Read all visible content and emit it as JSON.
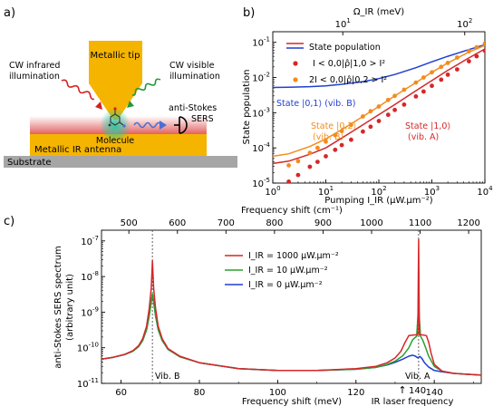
{
  "panel_labels": {
    "a": "a)",
    "b": "b)",
    "c": "c)"
  },
  "schematic": {
    "tip_label": "Metallic tip",
    "ir_label_1": "CW infrared",
    "ir_label_2": "illumination",
    "vis_label_1": "CW visible",
    "vis_label_2": "illumination",
    "sers_label_1": "anti-Stokes",
    "sers_label_2": "SERS",
    "molecule_label": "Molecule",
    "antenna_label": "Metallic IR antenna",
    "substrate_label": "Substrate",
    "colors": {
      "gold": "#f5b400",
      "substrate": "#a6a6a6",
      "ir": "#d42020",
      "visible": "#1f9a3a",
      "sers": "#4a6fd4",
      "glow": "#2cc6a0"
    }
  },
  "chart_data": [
    {
      "id": "b",
      "type": "line",
      "xlabel": "Pumping I_IR (μW.μm⁻²)",
      "top_xlabel": "Ω_IR (meV)",
      "ylabel": "State population",
      "xscale": "log",
      "yscale": "log",
      "xlim": [
        1,
        10000
      ],
      "ylim": [
        1e-05,
        0.2
      ],
      "x_ticks": [
        "10^0",
        "10^1",
        "10^2",
        "10^3",
        "10^4"
      ],
      "y_ticks": [
        "10^-5",
        "10^-4",
        "10^-3",
        "10^-2",
        "10^-1"
      ],
      "top_ticks": [
        "10^1",
        "10^2"
      ],
      "legend": [
        {
          "label": "State population",
          "style": "double-line",
          "colors": [
            "#d62728",
            "#1f3fd1"
          ]
        },
        {
          "label": "I < 0,0|ρ̂|1,0 > I²",
          "style": "dot",
          "color": "#d62728"
        },
        {
          "label": "2I < 0,0|ρ̂|0,2 > I²",
          "style": "dot",
          "color": "#f28c1c"
        }
      ],
      "annotations": [
        {
          "text": "State |0,1⟩ (vib. B)",
          "color": "#1f3fd1"
        },
        {
          "text": "State |0,2⟩",
          "color": "#f28c1c"
        },
        {
          "text": "(vib. B)",
          "color": "#f28c1c"
        },
        {
          "text": "State |1,0⟩",
          "color": "#d62728"
        },
        {
          "text": "(vib. A)",
          "color": "#d62728"
        }
      ],
      "series": [
        {
          "name": "State |0,1⟩ (vib. B)",
          "color": "#1f3fd1",
          "style": "line",
          "x": [
            1,
            2,
            5,
            10,
            20,
            50,
            100,
            200,
            500,
            1000,
            2000,
            5000,
            10000
          ],
          "y": [
            0.0052,
            0.0053,
            0.0055,
            0.0058,
            0.0064,
            0.0076,
            0.0093,
            0.0122,
            0.019,
            0.028,
            0.04,
            0.062,
            0.085
          ]
        },
        {
          "name": "State |0,2⟩ (vib. B)",
          "color": "#f28c1c",
          "style": "line",
          "x": [
            1,
            2,
            5,
            10,
            20,
            50,
            100,
            200,
            500,
            1000,
            2000,
            5000,
            10000
          ],
          "y": [
            5.8e-05,
            6.8e-05,
            0.00011,
            0.00018,
            0.00033,
            0.00078,
            0.0015,
            0.003,
            0.0072,
            0.014,
            0.026,
            0.053,
            0.082
          ]
        },
        {
          "name": "State |1,0⟩ (vib. A)",
          "color": "#d62728",
          "style": "line",
          "x": [
            1,
            2,
            5,
            10,
            20,
            50,
            100,
            200,
            500,
            1000,
            2000,
            5000,
            10000
          ],
          "y": [
            3.6e-05,
            4.2e-05,
            6.6e-05,
            0.0001,
            0.00019,
            0.00045,
            0.00088,
            0.0017,
            0.0042,
            0.0082,
            0.016,
            0.036,
            0.065
          ]
        },
        {
          "name": "2I < 0,0|ρ̂|0,2 > I²",
          "color": "#f28c1c",
          "style": "dot",
          "x": [
            2,
            3,
            5,
            7,
            10,
            15,
            20,
            30,
            50,
            70,
            100,
            150,
            200,
            300,
            500,
            700,
            1000,
            1500,
            2000,
            3000,
            5000,
            7000,
            10000
          ],
          "y": [
            3.2e-05,
            4.2e-05,
            7.2e-05,
            0.0001,
            0.00015,
            0.00023,
            0.0003,
            0.00045,
            0.00078,
            0.0011,
            0.0015,
            0.0023,
            0.003,
            0.0045,
            0.0072,
            0.01,
            0.014,
            0.02,
            0.026,
            0.037,
            0.056,
            0.072,
            0.092
          ]
        },
        {
          "name": "I < 0,0|ρ̂|1,0 > I²",
          "color": "#d62728",
          "style": "dot",
          "x": [
            2,
            3,
            5,
            7,
            10,
            15,
            20,
            30,
            50,
            70,
            100,
            150,
            200,
            300,
            500,
            700,
            1000,
            1500,
            2000,
            3000,
            5000,
            7000,
            10000
          ],
          "y": [
            1.1e-05,
            1.7e-05,
            2.9e-05,
            4e-05,
            5.8e-05,
            8.8e-05,
            0.00012,
            0.00017,
            0.00029,
            0.0004,
            0.00058,
            0.00087,
            0.0012,
            0.0017,
            0.0029,
            0.004,
            0.0058,
            0.0087,
            0.012,
            0.017,
            0.029,
            0.04,
            0.058
          ]
        }
      ]
    },
    {
      "id": "c",
      "type": "line",
      "xlabel": "Frequency shift (meV)",
      "top_xlabel": "Frequency shift (cm⁻¹)",
      "ylabel_1": "anti-Stokes SERS spectrum",
      "ylabel_2": "(arbitrary unit)",
      "yscale": "log",
      "xlim": [
        55,
        152
      ],
      "ylim": [
        1e-11,
        2e-07
      ],
      "x_ticks": [
        "60",
        "80",
        "100",
        "120",
        "140"
      ],
      "top_ticks": [
        "500",
        "600",
        "700",
        "800",
        "900",
        "1000",
        "1100",
        "1200"
      ],
      "y_ticks": [
        "10^-11",
        "10^-10",
        "10^-9",
        "10^-8",
        "10^-7"
      ],
      "legend": [
        {
          "label": "I_IR = 1000 μW.μm⁻²",
          "color": "#d62728"
        },
        {
          "label": "I_IR = 10 μW.μm⁻²",
          "color": "#2ca02c"
        },
        {
          "label": "I_IR = 0  μW.μm⁻²",
          "color": "#1f3fd1"
        }
      ],
      "annotations": {
        "vib_b": "Vib. B",
        "vib_a": "Vib. A",
        "laser_tick": "140",
        "laser_text": "IR laser frequency"
      },
      "vlines_mev": [
        68,
        136
      ],
      "series": [
        {
          "name": "I_IR = 0 μW.μm⁻²",
          "color": "#1f3fd1",
          "x": [
            55,
            58,
            61,
            63,
            64.5,
            65.5,
            66.5,
            67.2,
            67.7,
            68,
            68.3,
            68.8,
            69.5,
            70.5,
            72,
            75,
            80,
            90,
            100,
            110,
            120,
            125,
            128,
            130,
            132,
            133.5,
            134.5,
            135.2,
            135.8,
            136.3,
            136.8,
            137.5,
            138.5,
            140,
            142,
            145,
            152
          ],
          "y": [
            4.8e-11,
            5.4e-11,
            6.5e-11,
            8e-11,
            1.08e-10,
            1.6e-10,
            3.2e-10,
            8e-10,
            2e-09,
            3.2e-09,
            2e-09,
            8e-10,
            3.2e-10,
            1.6e-10,
            9e-11,
            5.6e-11,
            3.8e-11,
            2.6e-11,
            2.3e-11,
            2.3e-11,
            2.5e-11,
            2.8e-11,
            3.3e-11,
            3.9e-11,
            4.8e-11,
            5.8e-11,
            6.2e-11,
            5.8e-11,
            5.2e-11,
            5.7e-11,
            5.1e-11,
            3.8e-11,
            2.9e-11,
            2.3e-11,
            2.1e-11,
            1.9e-11,
            1.7e-11
          ]
        },
        {
          "name": "I_IR = 10 μW.μm⁻²",
          "color": "#2ca02c",
          "x": [
            55,
            58,
            61,
            63,
            64.5,
            65.5,
            66.5,
            67.2,
            67.7,
            68,
            68.3,
            68.8,
            69.5,
            70.5,
            72,
            75,
            80,
            90,
            100,
            110,
            120,
            125,
            128,
            130,
            132,
            133.5,
            134.5,
            135.5,
            136,
            136.5,
            137,
            137.8,
            138.5,
            140,
            142,
            145,
            152
          ],
          "y": [
            4.8e-11,
            5.4e-11,
            6.5e-11,
            8e-11,
            1.08e-10,
            1.6e-10,
            3.2e-10,
            8e-10,
            2e-09,
            3.2e-09,
            2e-09,
            8e-10,
            3.2e-10,
            1.6e-10,
            9e-11,
            5.6e-11,
            3.8e-11,
            2.6e-11,
            2.3e-11,
            2.3e-11,
            2.5e-11,
            2.8e-11,
            3.4e-11,
            4.2e-11,
            6e-11,
            1e-10,
            1.7e-10,
            2.1e-10,
            1.5e-09,
            2.1e-10,
            1.7e-10,
            1e-10,
            6e-11,
            3e-11,
            2.2e-11,
            1.9e-11,
            1.7e-11
          ]
        },
        {
          "name": "I_IR = 1000 μW.μm⁻²",
          "color": "#d62728",
          "x": [
            55,
            58,
            61,
            63,
            64.5,
            65.5,
            66.5,
            67.2,
            67.7,
            68,
            68.3,
            68.8,
            69.5,
            70.5,
            72,
            75,
            80,
            90,
            100,
            110,
            120,
            125,
            128,
            130,
            131.5,
            132.5,
            133.5,
            135,
            135.8,
            136,
            136.2,
            137,
            138,
            138.6,
            139.2,
            140,
            142,
            145,
            152
          ],
          "y": [
            4.8e-11,
            5.4e-11,
            6.6e-11,
            8.3e-11,
            1.15e-10,
            1.8e-10,
            4e-10,
            1.3e-09,
            4.8e-09,
            2.8e-08,
            4.8e-09,
            1.3e-09,
            4e-10,
            1.8e-10,
            9.5e-11,
            5.8e-11,
            3.8e-11,
            2.6e-11,
            2.3e-11,
            2.3e-11,
            2.6e-11,
            3e-11,
            3.8e-11,
            5.2e-11,
            8e-11,
            1.4e-10,
            2.2e-10,
            2.3e-10,
            2.3e-10,
            1.1e-07,
            2.3e-10,
            2.3e-10,
            2.2e-10,
            1.4e-10,
            7e-11,
            3.4e-11,
            2.2e-11,
            1.9e-11,
            1.7e-11
          ]
        }
      ]
    }
  ]
}
